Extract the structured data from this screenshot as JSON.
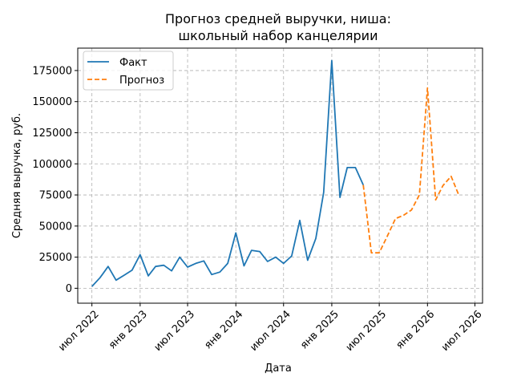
{
  "chart_data": {
    "type": "line",
    "title": [
      "Прогноз средней выручки, ниша:",
      "школьный набор канцелярии"
    ],
    "xlabel": "Дата",
    "ylabel": "Средняя выручка, руб.",
    "ylim": [
      -12000,
      193000
    ],
    "yticks": [
      0,
      25000,
      50000,
      75000,
      100000,
      125000,
      150000,
      175000
    ],
    "xlim": [
      "2022-05-08",
      "2026-07-30"
    ],
    "xticks": [
      {
        "date": "2022-07-01",
        "label": "июл 2022"
      },
      {
        "date": "2023-01-01",
        "label": "янв 2023"
      },
      {
        "date": "2023-07-01",
        "label": "июл 2023"
      },
      {
        "date": "2024-01-01",
        "label": "янв 2024"
      },
      {
        "date": "2024-07-01",
        "label": "июл 2024"
      },
      {
        "date": "2025-01-01",
        "label": "янв 2025"
      },
      {
        "date": "2025-07-01",
        "label": "июл 2025"
      },
      {
        "date": "2026-01-01",
        "label": "янв 2026"
      },
      {
        "date": "2026-07-01",
        "label": "июл 2026"
      }
    ],
    "grid": true,
    "legend_position": "top-left",
    "series": [
      {
        "name": "Факт",
        "color": "#1f77b4",
        "style": "solid",
        "x": [
          "2022-07-01",
          "2022-08-01",
          "2022-09-01",
          "2022-10-01",
          "2022-11-01",
          "2022-12-01",
          "2023-01-01",
          "2023-02-01",
          "2023-03-01",
          "2023-04-01",
          "2023-05-01",
          "2023-06-01",
          "2023-07-01",
          "2023-08-01",
          "2023-09-01",
          "2023-10-01",
          "2023-11-01",
          "2023-12-01",
          "2024-01-01",
          "2024-02-01",
          "2024-03-01",
          "2024-04-01",
          "2024-05-01",
          "2024-06-01",
          "2024-07-01",
          "2024-08-01",
          "2024-09-01",
          "2024-10-01",
          "2024-11-01",
          "2024-12-01",
          "2025-01-01",
          "2025-02-01",
          "2025-03-01",
          "2025-04-01",
          "2025-05-01"
        ],
        "y": [
          1500,
          8500,
          17500,
          6500,
          10500,
          14500,
          27000,
          10000,
          17500,
          18500,
          14000,
          25000,
          17000,
          20000,
          22000,
          11000,
          13000,
          20000,
          44500,
          18000,
          30500,
          29500,
          21500,
          25000,
          20000,
          26000,
          54500,
          22500,
          40000,
          77000,
          183000,
          73000,
          97000,
          97000,
          83000
        ]
      },
      {
        "name": "Прогноз",
        "color": "#ff7f0e",
        "style": "dashed",
        "x": [
          "2025-05-01",
          "2025-06-01",
          "2025-07-01",
          "2025-08-01",
          "2025-09-01",
          "2025-10-01",
          "2025-11-01",
          "2025-12-01",
          "2026-01-01",
          "2026-02-01",
          "2026-03-01",
          "2026-04-01",
          "2026-05-01"
        ],
        "y": [
          83000,
          28500,
          28500,
          42000,
          56000,
          58500,
          63000,
          75000,
          161000,
          71000,
          82500,
          90000,
          74500
        ]
      }
    ]
  }
}
